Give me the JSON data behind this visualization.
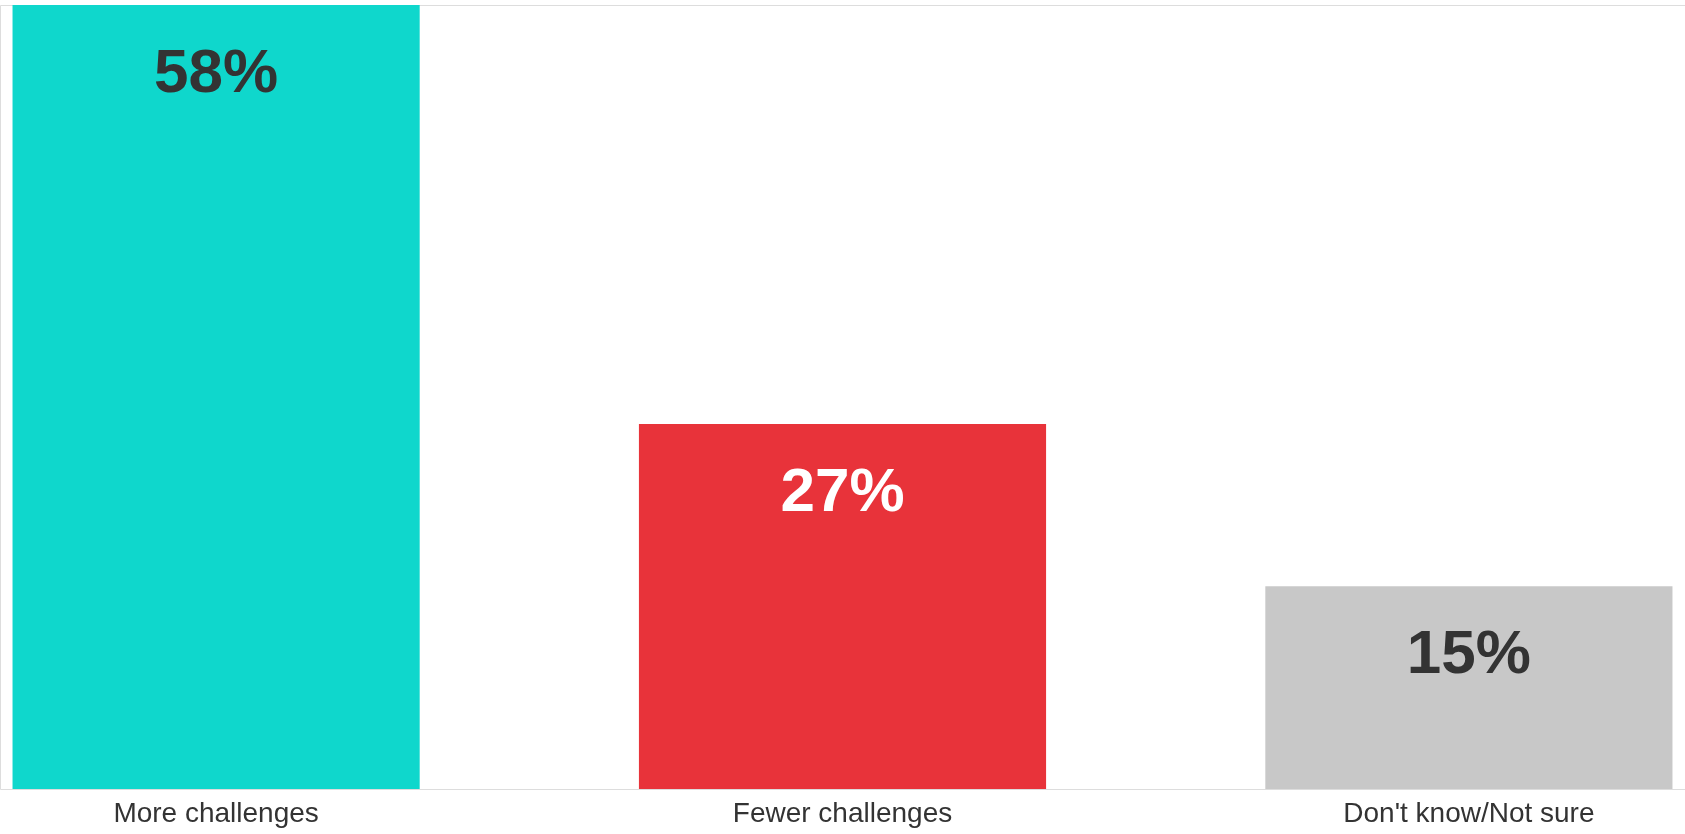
{
  "chart_data": {
    "type": "bar",
    "categories": [
      "More challenges",
      "Fewer challenges",
      "Don't know/Not sure"
    ],
    "values": [
      58,
      27,
      15
    ],
    "colors": [
      "#0fd7cc",
      "#e8333a",
      "#c8c8c8"
    ],
    "value_labels": [
      "58%",
      "27%",
      "15%"
    ]
  }
}
